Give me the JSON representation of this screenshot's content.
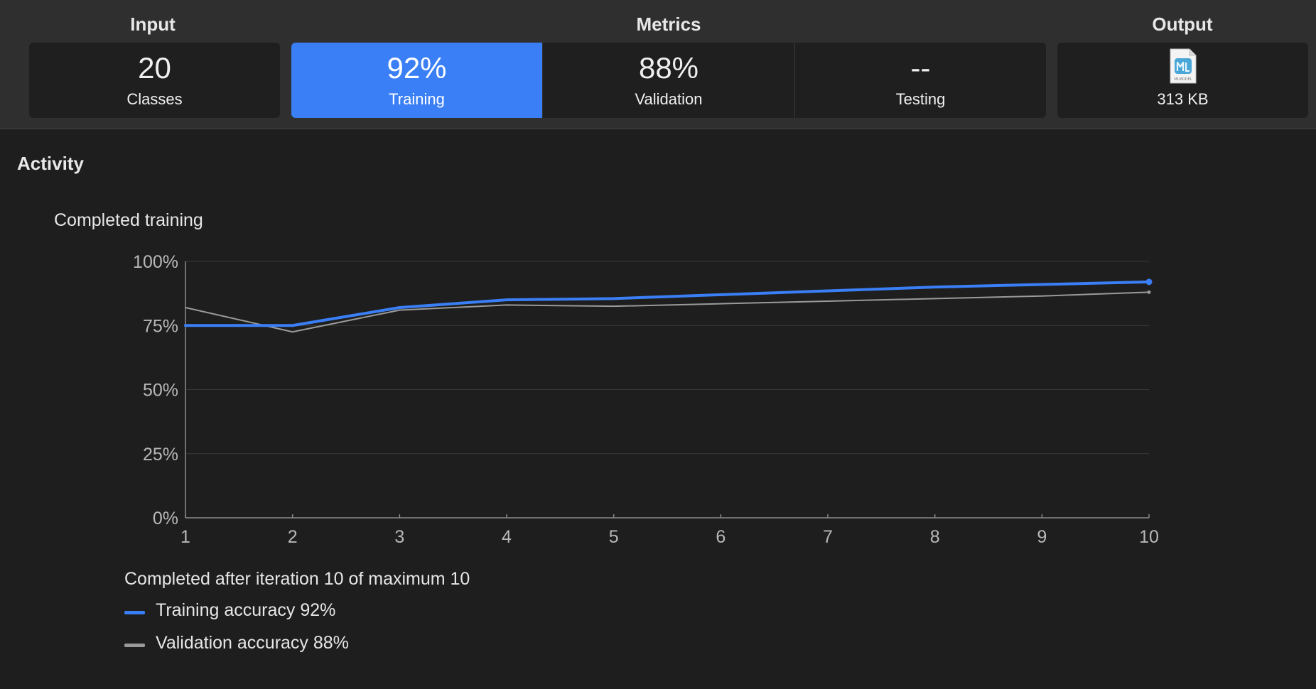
{
  "header": {
    "input_label": "Input",
    "metrics_label": "Metrics",
    "output_label": "Output"
  },
  "cards": {
    "classes": {
      "value": "20",
      "label": "Classes"
    },
    "training": {
      "value": "92%",
      "label": "Training"
    },
    "validation": {
      "value": "88%",
      "label": "Validation"
    },
    "testing": {
      "value": "--",
      "label": "Testing"
    },
    "model": {
      "icon": "mlmodel-file-icon",
      "icon_text": "MLMODEL",
      "label": "313 KB"
    }
  },
  "colors": {
    "accent": "#3a7ff6",
    "validation_line": "#9a9a9a"
  },
  "activity": {
    "title": "Activity",
    "chart_title": "Completed training",
    "status": "Completed after iteration 10 of maximum 10",
    "legend": [
      {
        "label": "Training accuracy 92%"
      },
      {
        "label": "Validation accuracy 88%"
      }
    ]
  },
  "chart_data": {
    "type": "line",
    "title": "Completed training",
    "x": [
      1,
      2,
      3,
      4,
      5,
      6,
      7,
      8,
      9,
      10
    ],
    "xticks": [
      "1",
      "2",
      "3",
      "4",
      "5",
      "6",
      "7",
      "8",
      "9",
      "10"
    ],
    "yticks": [
      "0%",
      "25%",
      "50%",
      "75%",
      "100%"
    ],
    "ylim": [
      0,
      100
    ],
    "xlim": [
      1,
      10
    ],
    "grid": true,
    "legend_position": "bottom-left",
    "series": [
      {
        "name": "Training accuracy 92%",
        "color": "#3a7ff6",
        "values": [
          75,
          75,
          82,
          85,
          85.5,
          87,
          88.5,
          90,
          91,
          92
        ]
      },
      {
        "name": "Validation accuracy 88%",
        "color": "#9a9a9a",
        "values": [
          82,
          72.5,
          81,
          83,
          82.5,
          83.5,
          84.5,
          85.5,
          86.5,
          88
        ]
      }
    ]
  }
}
